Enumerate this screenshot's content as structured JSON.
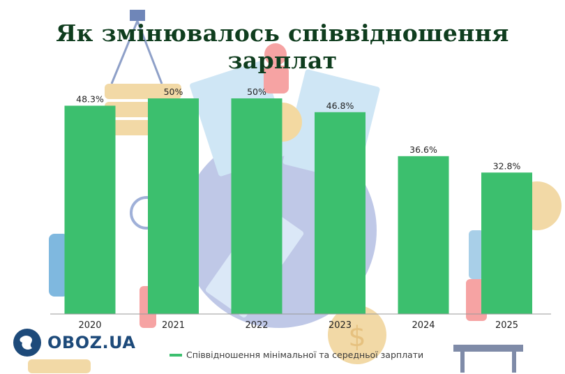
{
  "title": "Як змінювалось співвідношення зарплат",
  "logo_text": "OBOZ.UA",
  "colors": {
    "bar": "#3cbf6e",
    "title": "#0f3d1e",
    "logo": "#1d4a7a"
  },
  "chart_data": {
    "type": "bar",
    "categories": [
      "2020",
      "2021",
      "2022",
      "2023",
      "2024",
      "2025"
    ],
    "values": [
      48.3,
      50,
      50,
      46.8,
      36.6,
      32.8
    ],
    "value_labels": [
      "48.3%",
      "50%",
      "50%",
      "46.8%",
      "36.6%",
      "32.8%"
    ],
    "series": [
      {
        "name": "Співвідношення мінімальної та середньої зарплати",
        "values": [
          48.3,
          50,
          50,
          46.8,
          36.6,
          32.8
        ]
      }
    ],
    "ylim": [
      0,
      50
    ],
    "legend": "bottom",
    "grid": false
  }
}
